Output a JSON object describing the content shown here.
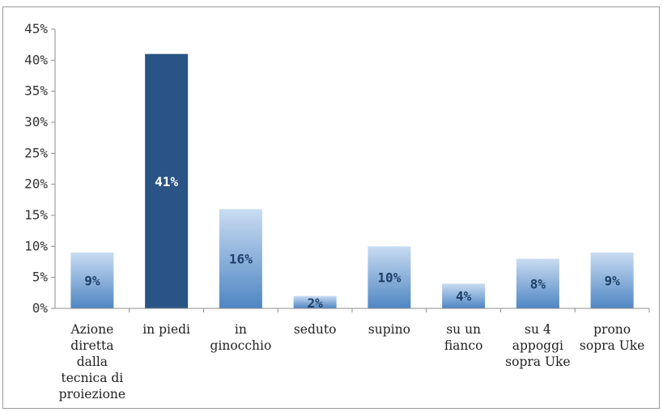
{
  "chart_data": {
    "type": "bar",
    "categories": [
      "Azione diretta dalla tecnica di proiezione",
      "in piedi",
      "in ginocchio",
      "seduto",
      "supino",
      "su un fianco",
      "su 4 appoggi sopra Uke",
      "prono sopra Uke"
    ],
    "category_lines": [
      [
        "Azione",
        "diretta",
        "dalla",
        "tecnica di",
        "proiezione"
      ],
      [
        "in piedi"
      ],
      [
        "in",
        "ginocchio"
      ],
      [
        "seduto"
      ],
      [
        "supino"
      ],
      [
        "su un",
        "fianco"
      ],
      [
        "su 4",
        "appoggi",
        "sopra Uke"
      ],
      [
        "prono",
        "sopra Uke"
      ]
    ],
    "values": [
      9,
      41,
      16,
      2,
      10,
      4,
      8,
      9
    ],
    "data_labels": [
      "9%",
      "41%",
      "16%",
      "2%",
      "10%",
      "4%",
      "8%",
      "9%"
    ],
    "y_ticks": [
      "0%",
      "5%",
      "10%",
      "15%",
      "20%",
      "25%",
      "30%",
      "35%",
      "40%",
      "45%"
    ],
    "ylim": [
      0,
      45
    ],
    "highlight_index": 1,
    "grid": false,
    "legend": "none",
    "colors": {
      "bar_top": "#c9dcf2",
      "bar_bottom": "#4f86c3",
      "highlight": "#2a5485",
      "axis": "#8c8c8c",
      "label_dark": "#1f3f66",
      "label_light": "#ffffff"
    }
  }
}
